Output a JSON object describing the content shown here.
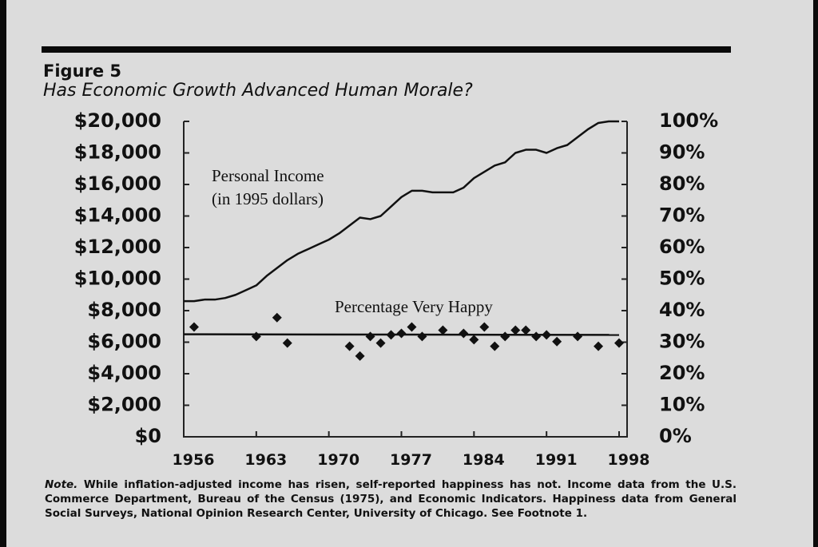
{
  "chart_data": {
    "type": "line",
    "figure_label": "Figure 5",
    "title": "Has Economic Growth Advanced Human Morale?",
    "annotations": [
      "Personal Income",
      "(in 1995 dollars)",
      "Percentage Very Happy"
    ],
    "xlim": [
      1956,
      1998
    ],
    "xticks": [
      1956,
      1963,
      1970,
      1977,
      1984,
      1991,
      1998
    ],
    "ylim": [
      0,
      20000
    ],
    "yticks": [
      {
        "value": 0,
        "label": "$0"
      },
      {
        "value": 2000,
        "label": "$2,000"
      },
      {
        "value": 4000,
        "label": "$4,000"
      },
      {
        "value": 6000,
        "label": "$6,000"
      },
      {
        "value": 8000,
        "label": "$8,000"
      },
      {
        "value": 10000,
        "label": "$10,000"
      },
      {
        "value": 12000,
        "label": "$12,000"
      },
      {
        "value": 14000,
        "label": "$14,000"
      },
      {
        "value": 16000,
        "label": "$16,000"
      },
      {
        "value": 18000,
        "label": "$18,000"
      },
      {
        "value": 20000,
        "label": "$20,000"
      }
    ],
    "y2lim": [
      0,
      100
    ],
    "y2ticks": [
      {
        "value": 0,
        "label": "0%"
      },
      {
        "value": 10,
        "label": "10%"
      },
      {
        "value": 20,
        "label": "20%"
      },
      {
        "value": 30,
        "label": "30%"
      },
      {
        "value": 40,
        "label": "40%"
      },
      {
        "value": 50,
        "label": "50%"
      },
      {
        "value": 60,
        "label": "60%"
      },
      {
        "value": 70,
        "label": "70%"
      },
      {
        "value": 80,
        "label": "80%"
      },
      {
        "value": 90,
        "label": "90%"
      },
      {
        "value": 100,
        "label": "100%"
      }
    ],
    "grid": false,
    "series": [
      {
        "type": "line",
        "color": "#111111",
        "x": [
          1956,
          1957,
          1958,
          1959,
          1960,
          1961,
          1962,
          1963,
          1964,
          1965,
          1966,
          1967,
          1968,
          1969,
          1970,
          1971,
          1972,
          1973,
          1974,
          1975,
          1976,
          1977,
          1978,
          1979,
          1980,
          1981,
          1982,
          1983,
          1984,
          1985,
          1986,
          1987,
          1988,
          1989,
          1990,
          1991,
          1992,
          1993,
          1994,
          1995,
          1996,
          1997,
          1998
        ],
        "values": [
          8600,
          8600,
          8700,
          8700,
          8800,
          9000,
          9300,
          9600,
          10200,
          10700,
          11200,
          11600,
          11900,
          12200,
          12500,
          12900,
          13400,
          13900,
          13800,
          14000,
          14600,
          15200,
          15600,
          15600,
          15500,
          15500,
          15500,
          15800,
          16400,
          16800,
          17200,
          17400,
          18000,
          18200,
          18200,
          18000,
          18300,
          18500,
          19000,
          19500,
          19900,
          20000,
          20000
        ]
      },
      {
        "type": "scatter",
        "axis": "y2",
        "color": "#111111",
        "x": [
          1957,
          1963,
          1965,
          1966,
          1972,
          1973,
          1974,
          1975,
          1976,
          1977,
          1978,
          1979,
          1981,
          1983,
          1984,
          1985,
          1986,
          1987,
          1988,
          1989,
          1990,
          1991,
          1992,
          1994,
          1996,
          1998
        ],
        "values": [
          34.8,
          31.8,
          37.8,
          29.7,
          28.7,
          25.6,
          31.8,
          29.7,
          32.3,
          32.8,
          34.8,
          31.8,
          33.8,
          32.8,
          30.8,
          34.8,
          28.7,
          31.8,
          33.8,
          33.8,
          31.8,
          32.3,
          30.2,
          31.8,
          28.7,
          29.7
        ]
      },
      {
        "type": "line",
        "axis": "y2",
        "color": "#111111",
        "x": [
          1956,
          1998
        ],
        "values": [
          32.5,
          32.3
        ]
      }
    ]
  },
  "note_label": "Note.",
  "note": "While inflation-adjusted income has risen, self-reported happiness has not. Income data from the U.S. Commerce Department, Bureau of the Census (1975), and Economic Indicators. Happiness data from General Social Surveys, National Opinion Research Center, University of Chicago. See Footnote 1."
}
